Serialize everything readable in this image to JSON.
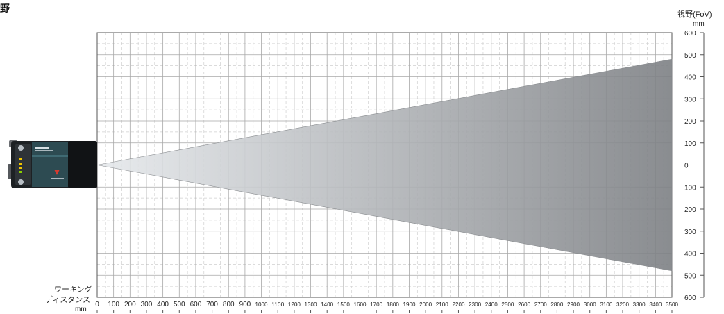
{
  "page": {
    "title": "野",
    "fov_title": "視野(FoV)",
    "fov_unit": "mm",
    "wd_title_line1": "ワーキング",
    "wd_title_line2": "ディスタンス",
    "wd_unit": "mm"
  },
  "chart_data": {
    "type": "area",
    "xlim": [
      0,
      3500
    ],
    "ylim": [
      -600,
      600
    ],
    "x_ticks": [
      0,
      100,
      200,
      300,
      400,
      500,
      600,
      700,
      800,
      900,
      1000,
      1100,
      1200,
      1300,
      1400,
      1500,
      1600,
      1700,
      1800,
      1900,
      2000,
      2100,
      2200,
      2300,
      2400,
      2500,
      2600,
      2700,
      2800,
      2900,
      3000,
      3100,
      3200,
      3300,
      3400,
      3500
    ],
    "y_ticks": [
      600,
      500,
      400,
      300,
      200,
      100,
      0,
      100,
      200,
      300,
      400,
      500,
      600
    ],
    "series": [
      {
        "x": [
          0,
          3500
        ],
        "upper": [
          0,
          480
        ],
        "lower": [
          0,
          -480
        ]
      }
    ],
    "grid": true,
    "colors": {
      "cone_start": "#e6e9ec",
      "cone_end": "#7d8084",
      "grid_major": "#a8a8a8",
      "grid_minor": "#cfcfcf",
      "axis": "#555555"
    }
  },
  "icons": {
    "device": "barcode-reader-camera-icon"
  }
}
